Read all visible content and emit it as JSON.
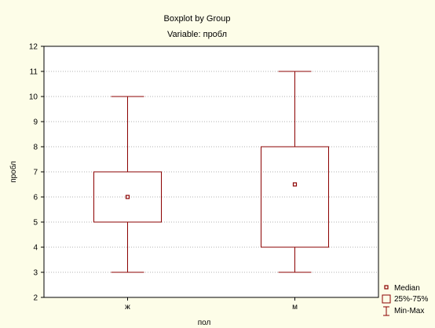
{
  "chart_data": {
    "type": "boxplot",
    "title": "Boxplot by Group",
    "subtitle": "Variable: пробл",
    "xlabel": "пол",
    "ylabel": "пробл",
    "ylim": [
      2,
      12
    ],
    "yticks": [
      2,
      3,
      4,
      5,
      6,
      7,
      8,
      9,
      10,
      11,
      12
    ],
    "grid": true,
    "categories": [
      "ж",
      "м"
    ],
    "series": [
      {
        "category": "ж",
        "min": 3,
        "q1": 5,
        "median": 6,
        "q3": 7,
        "max": 10
      },
      {
        "category": "м",
        "min": 3,
        "q1": 4,
        "median": 6.5,
        "q3": 8,
        "max": 11
      }
    ],
    "legend": {
      "placement": "bottom-right",
      "items": [
        "Median",
        "25%-75%",
        "Min-Max"
      ]
    },
    "colors": {
      "box": "#8b0000",
      "background": "#fdfde8",
      "plot_bg": "#ffffff",
      "grid": "#b0b0b0"
    }
  }
}
